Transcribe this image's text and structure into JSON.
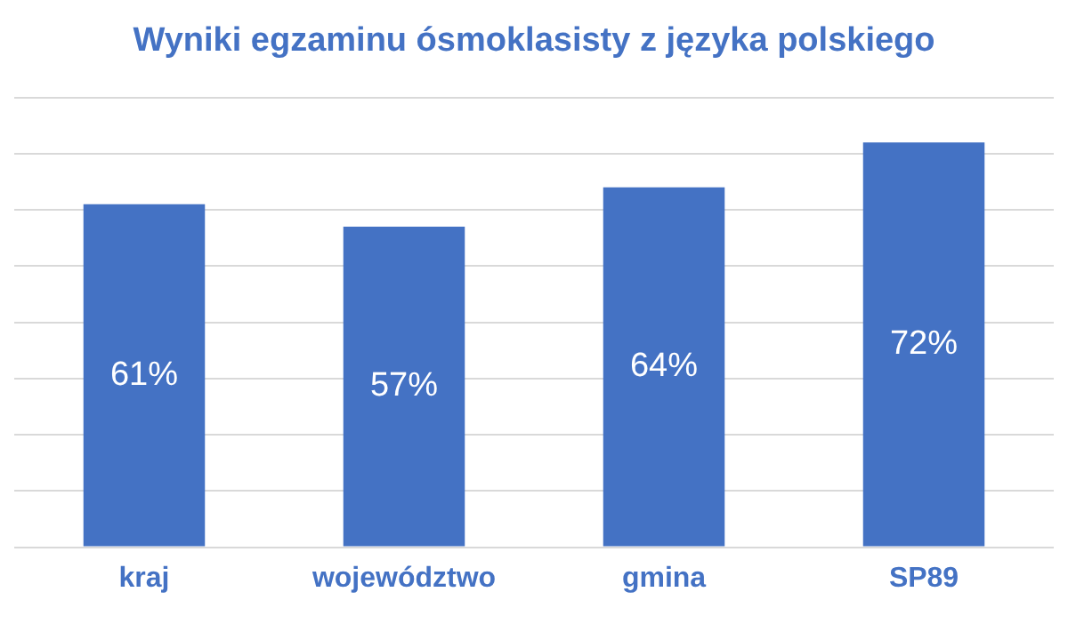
{
  "chart_data": {
    "type": "bar",
    "title": "Wyniki egzaminu ósmoklasisty z języka polskiego",
    "categories": [
      "kraj",
      "województwo",
      "gmina",
      "SP89"
    ],
    "values": [
      61,
      57,
      64,
      72
    ],
    "value_labels": [
      "61%",
      "57%",
      "64%",
      "72%"
    ],
    "color": "#4472c4",
    "ylim": [
      0,
      80
    ],
    "yticks": [
      0,
      10,
      20,
      30,
      40,
      50,
      60,
      70,
      80
    ],
    "grid": "y",
    "tick_labels": "x",
    "legend": false
  }
}
